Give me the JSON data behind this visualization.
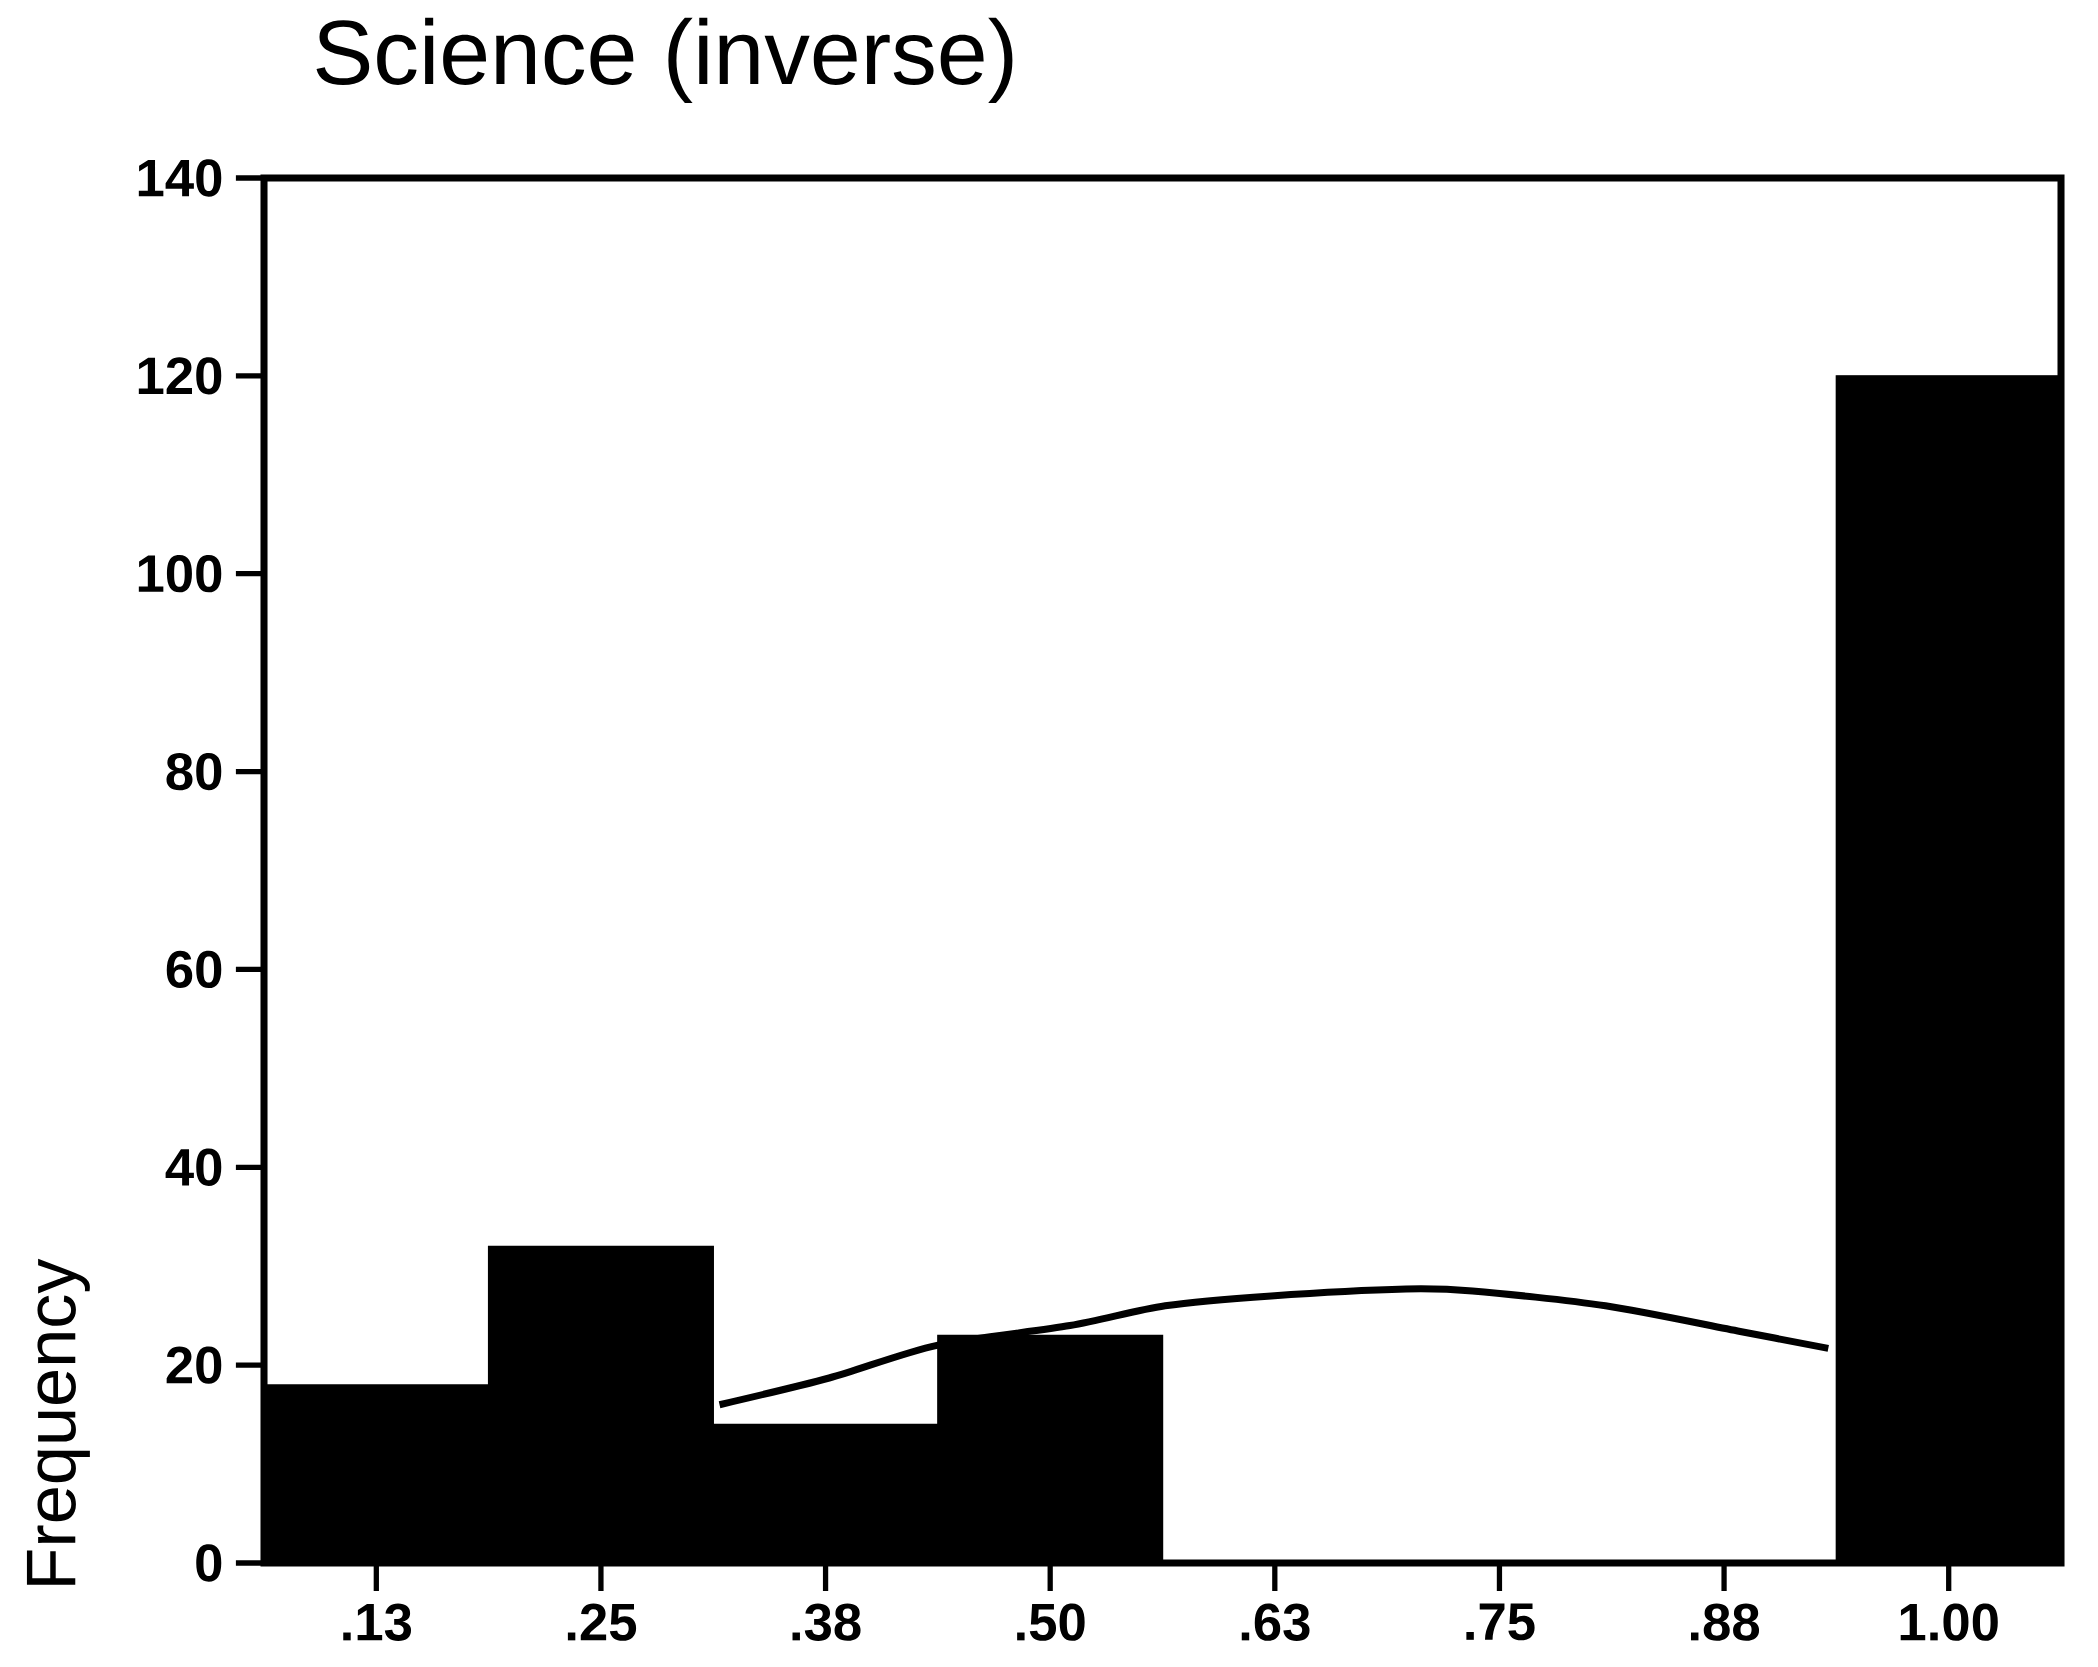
{
  "chart_data": {
    "type": "histogram",
    "title": "Science (inverse)",
    "ylabel": "Frequency",
    "bins": [
      0.0625,
      0.1875,
      0.3125,
      0.4375,
      0.5625,
      0.6875,
      0.8125,
      0.9375,
      1.0625
    ],
    "values": [
      18,
      32,
      14,
      23,
      0,
      0,
      0,
      120
    ],
    "color": "#000000",
    "series": [
      {
        "type": "line",
        "color": "#000000",
        "x": [
          0.316,
          0.377,
          0.437,
          0.511,
          0.564,
          0.623,
          0.698,
          0.735,
          0.809,
          0.884,
          0.933
        ],
        "values": [
          16,
          18.7,
          22,
          24,
          26,
          27,
          27.7,
          27.5,
          26,
          23.4,
          21.7
        ]
      }
    ],
    "xlim": [
      0.0625,
      1.0625
    ],
    "ylim": [
      0,
      140
    ],
    "xticks": [
      {
        "value": 0.125,
        "label": ".13"
      },
      {
        "value": 0.25,
        "label": ".25"
      },
      {
        "value": 0.375,
        "label": ".38"
      },
      {
        "value": 0.5,
        "label": ".50"
      },
      {
        "value": 0.625,
        "label": ".63"
      },
      {
        "value": 0.75,
        "label": ".75"
      },
      {
        "value": 0.875,
        "label": ".88"
      },
      {
        "value": 1.0,
        "label": "1.00"
      }
    ],
    "yticks": [
      0,
      20,
      40,
      60,
      80,
      100,
      120,
      140
    ],
    "grid": false
  }
}
